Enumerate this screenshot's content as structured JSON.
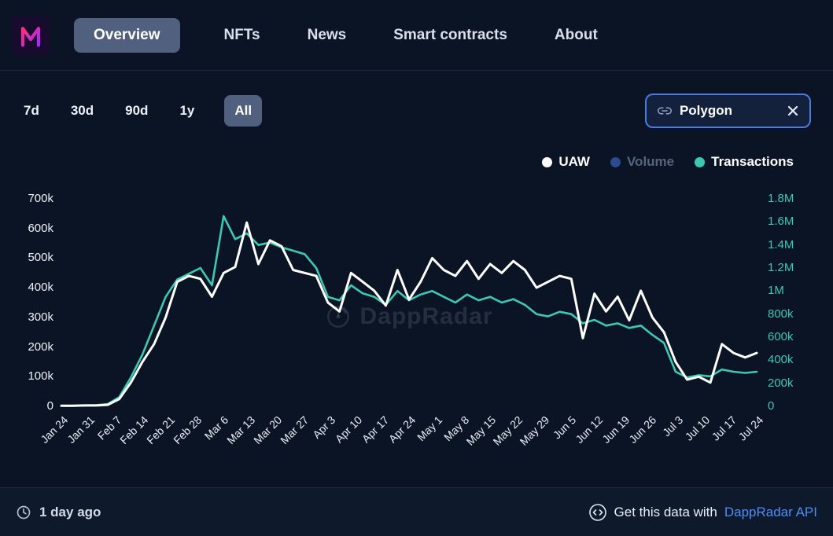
{
  "nav": {
    "tabs": [
      {
        "label": "Overview",
        "active": true
      },
      {
        "label": "NFTs",
        "active": false
      },
      {
        "label": "News",
        "active": false
      },
      {
        "label": "Smart contracts",
        "active": false
      },
      {
        "label": "About",
        "active": false
      }
    ]
  },
  "filters": {
    "ranges": [
      {
        "label": "7d",
        "active": false
      },
      {
        "label": "30d",
        "active": false
      },
      {
        "label": "90d",
        "active": false
      },
      {
        "label": "1y",
        "active": false
      },
      {
        "label": "All",
        "active": true
      }
    ],
    "chain": {
      "label": "Polygon",
      "removable": true
    }
  },
  "legend": [
    {
      "label": "UAW",
      "color": "#ffffff",
      "active": true
    },
    {
      "label": "Volume",
      "color": "#2b4a8f",
      "active": false
    },
    {
      "label": "Transactions",
      "color": "#3cc9b4",
      "active": true
    }
  ],
  "watermark": {
    "text": "DappRadar"
  },
  "footer": {
    "updated": "1 day ago",
    "cta_prefix": "Get this data with",
    "cta_link": "DappRadar API"
  },
  "colors": {
    "background": "#0b1424",
    "accent_teal": "#3cc9b4",
    "link_blue": "#4f8df7",
    "chip_border_blue": "#4a7cdf",
    "legend_volume_blue": "#2b4a8f",
    "logo_pink": "#ff2d78",
    "logo_purple": "#a12bff"
  },
  "chart_data": {
    "type": "line",
    "title": "",
    "grid": false,
    "legend_position": "top-right",
    "x_range": [
      "Jan 24",
      "Jul 24"
    ],
    "x_tick_interval_days": 7,
    "sample_interval_days": 3,
    "x_labels": [
      "Jan 24",
      "Jan 31",
      "Feb 7",
      "Feb 14",
      "Feb 21",
      "Feb 28",
      "Mar 6",
      "Mar 13",
      "Mar 20",
      "Mar 27",
      "Apr 3",
      "Apr 10",
      "Apr 17",
      "Apr 24",
      "May 1",
      "May 8",
      "May 15",
      "May 22",
      "May 29",
      "Jun 5",
      "Jun 12",
      "Jun 19",
      "Jun 26",
      "Jul 3",
      "Jul 10",
      "Jul 17",
      "Jul 24"
    ],
    "left_axis": {
      "label": "UAW",
      "unit": "k",
      "min": 0,
      "max": 700,
      "ticks": [
        "700k",
        "600k",
        "500k",
        "400k",
        "300k",
        "200k",
        "100k",
        "0"
      ]
    },
    "right_axis": {
      "label": "Transactions",
      "unit": "M",
      "min": 0,
      "max": 1.8,
      "ticks": [
        "1.8M",
        "1.6M",
        "1.4M",
        "1.2M",
        "1M",
        "800k",
        "600k",
        "400k",
        "200k",
        "0"
      ]
    },
    "series": [
      {
        "name": "UAW",
        "axis": "left",
        "color": "#ffffff",
        "unit": "k",
        "values": [
          2,
          2,
          3,
          3,
          5,
          25,
          80,
          150,
          210,
          300,
          420,
          440,
          430,
          370,
          450,
          470,
          620,
          480,
          560,
          540,
          460,
          450,
          440,
          350,
          320,
          450,
          420,
          390,
          340,
          460,
          360,
          420,
          500,
          460,
          440,
          490,
          430,
          480,
          450,
          490,
          460,
          400,
          420,
          440,
          430,
          230,
          380,
          320,
          370,
          290,
          390,
          300,
          250,
          150,
          90,
          100,
          80,
          210,
          180,
          165,
          180
        ]
      },
      {
        "name": "Transactions",
        "axis": "right",
        "color": "#3cc9b4",
        "unit": "M",
        "values": [
          0.005,
          0.005,
          0.008,
          0.01,
          0.02,
          0.08,
          0.25,
          0.45,
          0.7,
          0.95,
          1.1,
          1.15,
          1.2,
          1.05,
          1.65,
          1.45,
          1.5,
          1.4,
          1.42,
          1.38,
          1.35,
          1.32,
          1.2,
          0.95,
          0.92,
          1.05,
          0.98,
          0.95,
          0.88,
          1.0,
          0.92,
          0.97,
          1.0,
          0.95,
          0.9,
          0.97,
          0.92,
          0.95,
          0.9,
          0.93,
          0.88,
          0.8,
          0.78,
          0.82,
          0.8,
          0.72,
          0.75,
          0.7,
          0.72,
          0.68,
          0.7,
          0.62,
          0.55,
          0.3,
          0.25,
          0.27,
          0.26,
          0.32,
          0.3,
          0.29,
          0.3
        ]
      }
    ]
  }
}
